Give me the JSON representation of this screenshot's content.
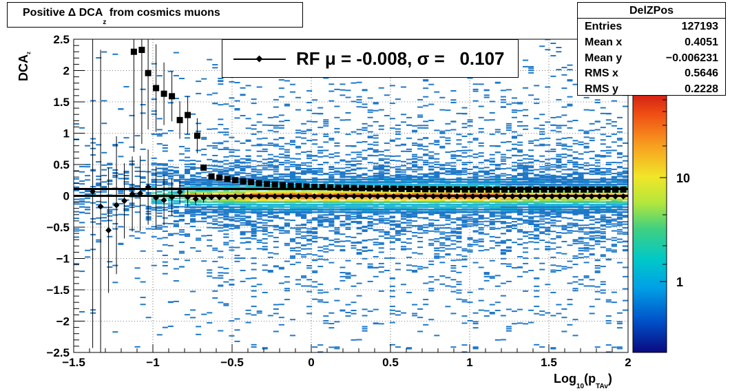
{
  "title": {
    "main": "Positive Δ DCA",
    "sub": "z",
    "rest": " from cosmics muons"
  },
  "stats": {
    "title": "DelZPos",
    "rows": [
      {
        "label": "Entries",
        "value": "127193"
      },
      {
        "label": "Mean x",
        "value": "0.4051"
      },
      {
        "label": "Mean y",
        "value": "−0.006231"
      },
      {
        "label": "RMS x",
        "value": "0.5646"
      },
      {
        "label": "RMS y",
        "value": "0.2228"
      }
    ]
  },
  "legend": {
    "text": "RF μ = -0.008, σ =   0.107"
  },
  "axis_titles": {
    "x_main": "Log",
    "x_sub": "10",
    "x_paren": "(p",
    "x_sub2": "TAv",
    "x_close": ")",
    "y_main": "DCA",
    "y_sub": "z"
  },
  "colorbar": {
    "labels": [
      "10",
      "1"
    ],
    "levels": [
      10,
      1
    ]
  },
  "chart_data": {
    "type": "scatter",
    "xlim": [
      -1.5,
      2.0
    ],
    "ylim": [
      -2.5,
      2.5
    ],
    "x_ticks": [
      -1.5,
      -1,
      -0.5,
      0,
      0.5,
      1,
      1.5,
      2
    ],
    "x_tick_labels": [
      "−1.5",
      "−1",
      "−0.5",
      "0",
      "0.5",
      "1",
      "1.5",
      "2"
    ],
    "y_ticks": [
      -2.5,
      -2,
      -1.5,
      -1,
      -0.5,
      0,
      0.5,
      1,
      1.5,
      2,
      2.5
    ],
    "y_tick_labels": [
      "−2.5",
      "−2",
      "−1.5",
      "−1",
      "−0.5",
      "0",
      "0.5",
      "1",
      "1.5",
      "2",
      "2.5"
    ],
    "grid": true,
    "background": "2D histogram (DCAz vs Log10 pTAv), rainbow color scale, log z",
    "reference_lines": [
      0.11,
      0.0
    ],
    "series": [
      {
        "marker": "square",
        "x": [
          -1.12,
          -1.07,
          -1.03,
          -0.98,
          -0.93,
          -0.88,
          -0.83,
          -0.78,
          -0.72,
          -0.68,
          -0.63,
          -0.58,
          -0.53,
          -0.48,
          -0.43,
          -0.38,
          -0.33,
          -0.28,
          -0.23,
          -0.18,
          -0.13,
          -0.08,
          -0.03,
          0.02,
          0.07,
          0.12,
          0.17,
          0.22,
          0.27,
          0.32,
          0.37,
          0.42,
          0.47,
          0.52,
          0.57,
          0.62,
          0.67,
          0.72,
          0.77,
          0.82,
          0.87,
          0.92,
          0.97,
          1.02,
          1.07,
          1.12,
          1.17,
          1.22,
          1.27,
          1.32,
          1.37,
          1.42,
          1.47,
          1.52,
          1.57,
          1.62,
          1.67,
          1.72,
          1.77,
          1.82,
          1.87,
          1.92,
          1.97
        ],
        "y": [
          2.3,
          2.33,
          1.96,
          1.72,
          1.63,
          1.59,
          1.21,
          1.29,
          0.96,
          0.45,
          0.31,
          0.29,
          0.27,
          0.25,
          0.23,
          0.22,
          0.2,
          0.19,
          0.18,
          0.17,
          0.16,
          0.155,
          0.15,
          0.145,
          0.14,
          0.135,
          0.13,
          0.128,
          0.125,
          0.123,
          0.12,
          0.118,
          0.116,
          0.114,
          0.112,
          0.11,
          0.108,
          0.106,
          0.105,
          0.104,
          0.103,
          0.102,
          0.101,
          0.1,
          0.1,
          0.1,
          0.1,
          0.1,
          0.1,
          0.1,
          0.1,
          0.1,
          0.1,
          0.1,
          0.1,
          0.1,
          0.1,
          0.1,
          0.1,
          0.1,
          0.1,
          0.1,
          0.1
        ],
        "err": [
          1.6,
          1.5,
          0.9,
          0.7,
          0.5,
          0.4,
          0.3,
          0.3,
          0.28,
          0,
          0,
          0,
          0,
          0,
          0,
          0,
          0,
          0,
          0,
          0,
          0,
          0,
          0,
          0,
          0,
          0,
          0,
          0,
          0,
          0,
          0,
          0,
          0,
          0,
          0,
          0,
          0,
          0,
          0,
          0,
          0,
          0,
          0,
          0,
          0,
          0,
          0,
          0,
          0,
          0,
          0,
          0,
          0,
          0,
          0,
          0,
          0,
          0,
          0,
          0,
          0,
          0,
          0
        ]
      },
      {
        "name": "RF",
        "marker": "diamond",
        "x": [
          -1.38,
          -1.33,
          -1.28,
          -1.23,
          -1.18,
          -1.13,
          -1.08,
          -1.03,
          -0.98,
          -0.93,
          -0.88,
          -0.83,
          -0.78,
          -0.73,
          -0.68,
          -0.63,
          -0.58,
          -0.53,
          -0.48,
          -0.43,
          -0.38,
          -0.33,
          -0.28,
          -0.23,
          -0.18,
          -0.13,
          -0.08,
          -0.03,
          0.02,
          0.07,
          0.12,
          0.17,
          0.22,
          0.27,
          0.32,
          0.37,
          0.42,
          0.47,
          0.52,
          0.57,
          0.62,
          0.67,
          0.72,
          0.77,
          0.82,
          0.87,
          0.92,
          0.97,
          1.02,
          1.07,
          1.12,
          1.17,
          1.22,
          1.27,
          1.32,
          1.37,
          1.42,
          1.47,
          1.52,
          1.57,
          1.62,
          1.67,
          1.72,
          1.77,
          1.82,
          1.87,
          1.92,
          1.97
        ],
        "y": [
          0.07,
          -0.17,
          -0.55,
          -0.15,
          -0.08,
          0.03,
          0.04,
          0.14,
          -0.03,
          -0.07,
          -0.02,
          0.06,
          -0.02,
          -0.05,
          -0.03,
          -0.02,
          -0.02,
          -0.015,
          -0.01,
          -0.01,
          -0.01,
          -0.008,
          -0.008,
          -0.008,
          -0.008,
          -0.008,
          -0.008,
          -0.008,
          -0.008,
          -0.008,
          -0.008,
          -0.008,
          -0.008,
          -0.008,
          -0.008,
          -0.008,
          -0.008,
          -0.008,
          -0.008,
          -0.008,
          -0.008,
          -0.008,
          -0.008,
          -0.008,
          -0.008,
          -0.008,
          -0.008,
          -0.008,
          -0.008,
          -0.008,
          -0.008,
          -0.008,
          -0.008,
          -0.008,
          -0.008,
          -0.008,
          -0.008,
          -0.008,
          -0.008,
          -0.008,
          -0.008,
          -0.008,
          -0.008,
          -0.008,
          -0.008,
          -0.008,
          -0.008,
          -0.008
        ],
        "err": [
          2.5,
          2.5,
          1.0,
          1.1,
          0.6,
          0.6,
          0.6,
          0.6,
          0.5,
          0.4,
          0.3,
          0.2,
          0.15,
          0.1,
          0.08,
          0.05,
          0,
          0,
          0,
          0,
          0,
          0,
          0,
          0,
          0,
          0,
          0,
          0,
          0,
          0,
          0,
          0,
          0,
          0,
          0,
          0,
          0,
          0,
          0,
          0,
          0,
          0,
          0,
          0,
          0,
          0,
          0,
          0,
          0,
          0,
          0,
          0,
          0,
          0,
          0,
          0,
          0,
          0,
          0,
          0,
          0,
          0,
          0,
          0,
          0,
          0,
          0,
          0
        ]
      }
    ]
  }
}
